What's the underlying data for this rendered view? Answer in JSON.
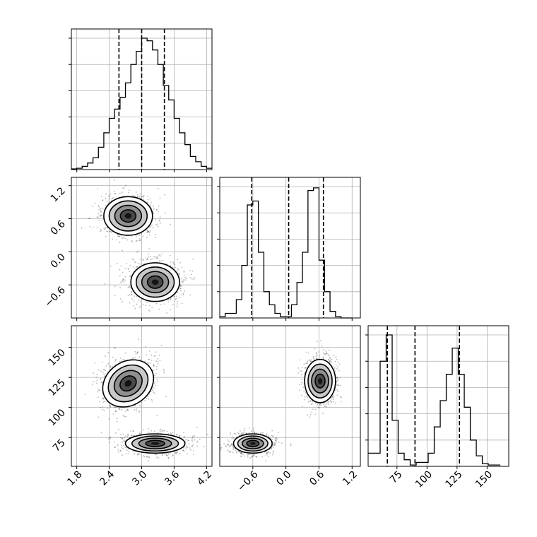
{
  "chart_data": [
    {
      "type": "histogram",
      "parameter_index": 0,
      "x_range": [
        1.7,
        4.3
      ],
      "grid": true,
      "bin_edges": [
        1.7,
        1.8,
        1.9,
        2.0,
        2.1,
        2.2,
        2.3,
        2.4,
        2.5,
        2.6,
        2.7,
        2.8,
        2.9,
        3.0,
        3.1,
        3.2,
        3.3,
        3.4,
        3.5,
        3.6,
        3.7,
        3.8,
        3.9,
        4.0,
        4.1,
        4.2,
        4.3
      ],
      "counts": [
        0.5,
        1,
        2.5,
        5,
        9,
        17,
        28,
        39,
        46,
        55,
        66,
        80,
        90,
        100,
        98,
        91,
        80,
        64,
        53,
        39,
        28,
        19,
        10,
        6,
        2.5,
        1
      ],
      "quantiles": [
        2.58,
        3.0,
        3.42
      ],
      "x_ticks": [
        "1.8",
        "2.4",
        "3.0",
        "3.6",
        "4.2"
      ],
      "x_tick_values": [
        1.8,
        2.4,
        3.0,
        3.6,
        4.2
      ]
    },
    {
      "type": "histogram",
      "parameter_index": 1,
      "x_range": [
        -1.2,
        1.35
      ],
      "grid": true,
      "bin_edges": [
        -1.2,
        -1.1,
        -1.0,
        -0.9,
        -0.8,
        -0.7,
        -0.6,
        -0.5,
        -0.4,
        -0.3,
        -0.2,
        -0.1,
        0.0,
        0.1,
        0.2,
        0.3,
        0.4,
        0.5,
        0.6,
        0.7,
        0.8,
        0.9,
        1.0,
        1.1,
        1.2
      ],
      "counts": [
        1,
        3.5,
        3.5,
        14,
        40,
        86,
        89,
        50,
        20,
        10,
        3.5,
        1,
        1,
        10,
        27,
        50,
        97,
        99,
        44,
        20,
        5,
        1,
        0,
        0
      ],
      "quantiles": [
        -0.62,
        0.05,
        0.68
      ],
      "x_ticks": [
        "−0.6",
        "0.0",
        "0.6",
        "1.2"
      ],
      "x_tick_values": [
        -0.6,
        0.0,
        0.6,
        1.2
      ]
    },
    {
      "type": "histogram",
      "parameter_index": 2,
      "x_range": [
        51,
        168
      ],
      "grid": true,
      "bin_edges": [
        51,
        56,
        61,
        66,
        71,
        76,
        81,
        86,
        91,
        96,
        101,
        106,
        111,
        116,
        121,
        126,
        131,
        136,
        141,
        146,
        151,
        156,
        161
      ],
      "counts": [
        10,
        10,
        80,
        100,
        35,
        10,
        5,
        1,
        3,
        3,
        10,
        30,
        50,
        70,
        90,
        70,
        45,
        20,
        8,
        2,
        1,
        1
      ],
      "quantiles": [
        67,
        90,
        127
      ],
      "x_ticks": [
        "75",
        "100",
        "125",
        "150"
      ],
      "x_tick_values": [
        75,
        100,
        125,
        150
      ]
    },
    {
      "type": "contour",
      "panel": "param1_vs_param0",
      "x_range": [
        1.7,
        4.3
      ],
      "y_range": [
        -1.2,
        1.35
      ],
      "grid": true,
      "clusters": [
        {
          "center": [
            2.75,
            0.65
          ],
          "spread": [
            0.45,
            0.35
          ]
        },
        {
          "center": [
            3.25,
            -0.55
          ],
          "spread": [
            0.45,
            0.35
          ]
        }
      ],
      "y_ticks": [
        "−0.6",
        "0.0",
        "0.6",
        "1.2"
      ],
      "y_tick_values": [
        -0.6,
        0.0,
        0.6,
        1.2
      ]
    },
    {
      "type": "contour",
      "panel": "param2_vs_param0",
      "x_range": [
        1.7,
        4.3
      ],
      "y_range": [
        51,
        168
      ],
      "grid": true,
      "clusters": [
        {
          "center": [
            2.75,
            120
          ],
          "spread": [
            0.5,
            18
          ]
        },
        {
          "center": [
            3.25,
            70
          ],
          "spread": [
            0.55,
            8
          ]
        }
      ],
      "y_ticks": [
        "75",
        "100",
        "125",
        "150"
      ],
      "y_tick_values": [
        75,
        100,
        125,
        150
      ]
    },
    {
      "type": "contour",
      "panel": "param2_vs_param1",
      "x_range": [
        -1.2,
        1.35
      ],
      "y_range": [
        51,
        168
      ],
      "grid": true,
      "clusters": [
        {
          "center": [
            0.62,
            122
          ],
          "spread": [
            0.28,
            18
          ]
        },
        {
          "center": [
            -0.6,
            70
          ],
          "spread": [
            0.35,
            8
          ]
        }
      ]
    }
  ]
}
